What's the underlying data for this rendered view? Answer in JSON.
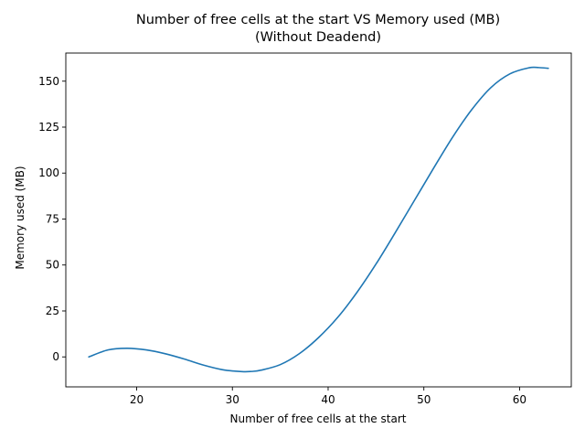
{
  "chart_data": {
    "type": "line",
    "title": "Number of free cells at the start VS Memory used (MB)",
    "subtitle": "(Without Deadend)",
    "xlabel": "Number of free cells at the start",
    "ylabel": "Memory used (MB)",
    "xlim": [
      12.6,
      65.4
    ],
    "ylim": [
      -16.3,
      165.3
    ],
    "xticks": [
      20,
      30,
      40,
      50,
      60
    ],
    "yticks": [
      0,
      25,
      50,
      75,
      100,
      125,
      150
    ],
    "grid": false,
    "series": [
      {
        "color": "#1f77b4",
        "x": [
          15,
          17,
          19,
          21,
          23,
          25,
          27,
          29,
          31,
          32,
          33,
          35,
          37,
          39,
          41,
          43,
          45,
          47,
          49,
          51,
          53,
          55,
          57,
          59,
          61,
          62,
          63
        ],
        "y": [
          0,
          3.8,
          4.7,
          3.8,
          1.7,
          -1.2,
          -4.5,
          -7.0,
          -8.0,
          -7.9,
          -7.2,
          -4.2,
          1.8,
          10.5,
          21.5,
          35,
          50.5,
          67.5,
          85,
          102.5,
          119.5,
          134.5,
          146.5,
          154,
          157.3,
          157.4,
          157
        ]
      }
    ]
  }
}
